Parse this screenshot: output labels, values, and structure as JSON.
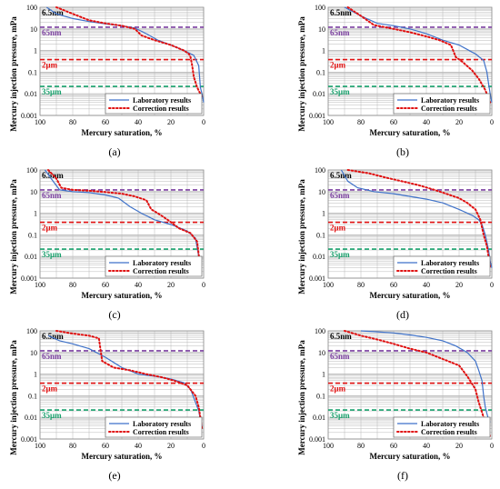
{
  "colors": {
    "laboratory": "#3f72c9",
    "correction": "#e01010",
    "line_65nm": "#7b3fa0",
    "line_2um": "#e01010",
    "line_35um": "#17a06b",
    "grid": "#b8b8b8"
  },
  "chart_data": [
    {
      "panel_label": "(a)",
      "type": "line",
      "xlabel": "Mercury saturation, %",
      "ylabel": "Mercury injection pressure, mPa",
      "x_ticks": [
        "100",
        "80",
        "60",
        "40",
        "20",
        "0"
      ],
      "y_ticks": [
        "100",
        "10",
        "1",
        "0.1",
        "0.01",
        "0.001"
      ],
      "xlim": [
        100,
        0
      ],
      "ylim": [
        0.001,
        100
      ],
      "y_scale": "log",
      "grid": true,
      "legend_position": "bottom-right",
      "reference_lines": [
        {
          "label": "6.5nm",
          "value": 100,
          "color": "#7b3fa0"
        },
        {
          "label": "65nm",
          "value": 12,
          "color": "#7b3fa0"
        },
        {
          "label": "2μm",
          "value": 0.38,
          "color": "#e01010"
        },
        {
          "label": "35μm",
          "value": 0.022,
          "color": "#17a06b"
        }
      ],
      "series": [
        {
          "name": "Laboratory results",
          "style": "solid",
          "x": [
            96,
            90,
            80,
            70,
            60,
            50,
            42,
            35,
            28,
            20,
            12,
            6,
            3,
            2,
            1,
            0
          ],
          "y": [
            100,
            50,
            30,
            22,
            17,
            14,
            11,
            6,
            3,
            1.8,
            1,
            0.6,
            0.2,
            0.02,
            0.01,
            0.004
          ]
        },
        {
          "name": "Correction results",
          "style": "dotted",
          "x": [
            90,
            80,
            70,
            60,
            50,
            42,
            38,
            30,
            20,
            12,
            9,
            8,
            7,
            6,
            4,
            1
          ],
          "y": [
            100,
            50,
            25,
            18,
            14,
            10,
            5,
            3,
            1.8,
            1,
            0.7,
            0.5,
            0.2,
            0.06,
            0.02,
            0.007
          ]
        }
      ]
    },
    {
      "panel_label": "(b)",
      "type": "line",
      "xlabel": "Mercury saturation, %",
      "ylabel": "Mercury injection pressure, mPa",
      "x_ticks": [
        "100",
        "80",
        "60",
        "40",
        "20",
        "0"
      ],
      "y_ticks": [
        "100",
        "10",
        "1",
        "0.1",
        "0.01",
        "0.001"
      ],
      "xlim": [
        100,
        0
      ],
      "ylim": [
        0.001,
        100
      ],
      "y_scale": "log",
      "grid": true,
      "legend_position": "bottom-right",
      "reference_lines": [
        {
          "label": "6.5nm",
          "value": 100,
          "color": "#7b3fa0"
        },
        {
          "label": "65nm",
          "value": 12,
          "color": "#7b3fa0"
        },
        {
          "label": "2μm",
          "value": 0.38,
          "color": "#e01010"
        },
        {
          "label": "35μm",
          "value": 0.022,
          "color": "#17a06b"
        }
      ],
      "series": [
        {
          "name": "Laboratory results",
          "style": "solid",
          "x": [
            90,
            80,
            70,
            60,
            50,
            40,
            30,
            20,
            10,
            5,
            3,
            2,
            1,
            0
          ],
          "y": [
            100,
            40,
            18,
            14,
            10,
            6,
            3,
            1.8,
            0.7,
            0.35,
            0.1,
            0.03,
            0.01,
            0.004
          ]
        },
        {
          "name": "Correction results",
          "style": "dotted",
          "x": [
            88,
            80,
            72,
            60,
            50,
            40,
            32,
            25,
            22,
            18,
            12,
            8,
            4,
            1
          ],
          "y": [
            100,
            40,
            15,
            10,
            7,
            4.5,
            3,
            1.8,
            0.5,
            0.3,
            0.12,
            0.05,
            0.015,
            0.004
          ]
        }
      ]
    },
    {
      "panel_label": "(c)",
      "type": "line",
      "xlabel": "Mercury saturation, %",
      "ylabel": "Mercury injection pressure, mPa",
      "x_ticks": [
        "100",
        "80",
        "60",
        "40",
        "20",
        "0"
      ],
      "y_ticks": [
        "100",
        "10",
        "1",
        "0.1",
        "0.01",
        "0.001"
      ],
      "xlim": [
        100,
        0
      ],
      "ylim": [
        0.001,
        100
      ],
      "y_scale": "log",
      "grid": true,
      "legend_position": "bottom-right",
      "reference_lines": [
        {
          "label": "6.5nm",
          "value": 100,
          "color": "#7b3fa0"
        },
        {
          "label": "65nm",
          "value": 12,
          "color": "#7b3fa0"
        },
        {
          "label": "2μm",
          "value": 0.38,
          "color": "#e01010"
        },
        {
          "label": "35μm",
          "value": 0.022,
          "color": "#17a06b"
        }
      ],
      "series": [
        {
          "name": "Laboratory results",
          "style": "solid",
          "x": [
            97,
            92,
            88,
            80,
            70,
            60,
            52,
            45,
            38,
            30,
            20,
            10,
            5,
            3,
            2
          ],
          "y": [
            100,
            30,
            12,
            10,
            9,
            7,
            5,
            2,
            1,
            0.5,
            0.3,
            0.15,
            0.07,
            0.01,
            0.004
          ]
        },
        {
          "name": "Correction results",
          "style": "dotted",
          "x": [
            95,
            90,
            87,
            80,
            70,
            60,
            50,
            42,
            35,
            32,
            28,
            22,
            15,
            8,
            4,
            2
          ],
          "y": [
            100,
            40,
            15,
            12,
            11,
            9.5,
            8,
            6,
            4,
            1.5,
            1,
            0.5,
            0.2,
            0.12,
            0.05,
            0.003
          ]
        }
      ]
    },
    {
      "panel_label": "(d)",
      "type": "line",
      "xlabel": "Mercury saturation, %",
      "ylabel": "Mercury injection pressure, mPa",
      "x_ticks": [
        "100",
        "80",
        "60",
        "40",
        "20",
        "0"
      ],
      "y_ticks": [
        "100",
        "10",
        "1",
        "0.1",
        "0.01",
        "0.001"
      ],
      "xlim": [
        100,
        0
      ],
      "ylim": [
        0.001,
        100
      ],
      "y_scale": "log",
      "grid": true,
      "legend_position": "bottom-right",
      "reference_lines": [
        {
          "label": "6.5nm",
          "value": 100,
          "color": "#7b3fa0"
        },
        {
          "label": "65nm",
          "value": 12,
          "color": "#7b3fa0"
        },
        {
          "label": "2μm",
          "value": 0.38,
          "color": "#e01010"
        },
        {
          "label": "35μm",
          "value": 0.022,
          "color": "#17a06b"
        }
      ],
      "series": [
        {
          "name": "Laboratory results",
          "style": "solid",
          "x": [
            92,
            88,
            82,
            72,
            60,
            50,
            40,
            30,
            20,
            12,
            8,
            6,
            4,
            2,
            1,
            0
          ],
          "y": [
            100,
            30,
            15,
            10,
            8,
            6,
            4.5,
            3,
            1.5,
            0.8,
            0.5,
            0.3,
            0.1,
            0.02,
            0.006,
            0.003
          ]
        },
        {
          "name": "Correction results",
          "style": "dotted",
          "x": [
            88,
            75,
            65,
            55,
            45,
            35,
            28,
            20,
            15,
            10,
            7,
            5,
            3,
            2,
            1
          ],
          "y": [
            100,
            70,
            45,
            30,
            20,
            12,
            8,
            5,
            3,
            1.5,
            0.5,
            0.1,
            0.03,
            0.01,
            0.003
          ]
        }
      ]
    },
    {
      "panel_label": "(e)",
      "type": "line",
      "xlabel": "Mercury saturation, %",
      "ylabel": "Mercury injection pressure, mPa",
      "x_ticks": [
        "100",
        "80",
        "60",
        "40",
        "20",
        "0"
      ],
      "y_ticks": [
        "100",
        "10",
        "1",
        "0.1",
        "0.01",
        "0.001"
      ],
      "xlim": [
        100,
        0
      ],
      "ylim": [
        0.001,
        100
      ],
      "y_scale": "log",
      "grid": true,
      "legend_position": "bottom-right",
      "reference_lines": [
        {
          "label": "6.5nm",
          "value": 100,
          "color": "#7b3fa0"
        },
        {
          "label": "65nm",
          "value": 12,
          "color": "#7b3fa0"
        },
        {
          "label": "2μm",
          "value": 0.38,
          "color": "#e01010"
        },
        {
          "label": "35μm",
          "value": 0.022,
          "color": "#17a06b"
        }
      ],
      "series": [
        {
          "name": "Laboratory results",
          "style": "solid",
          "x": [
            95,
            88,
            80,
            70,
            60,
            50,
            40,
            30,
            20,
            12,
            8,
            5,
            3,
            2,
            1
          ],
          "y": [
            60,
            35,
            25,
            15,
            6,
            2,
            1,
            0.8,
            0.6,
            0.4,
            0.2,
            0.05,
            0.02,
            0.008,
            0.004
          ]
        },
        {
          "name": "Correction results",
          "style": "dotted",
          "x": [
            90,
            80,
            70,
            64,
            62,
            55,
            45,
            35,
            25,
            18,
            10,
            5,
            3,
            2,
            1
          ],
          "y": [
            100,
            75,
            60,
            45,
            4,
            2,
            1.5,
            1,
            0.7,
            0.5,
            0.3,
            0.1,
            0.03,
            0.01,
            0.003
          ]
        }
      ]
    },
    {
      "panel_label": "(f)",
      "type": "line",
      "xlabel": "Mercury saturation, %",
      "ylabel": "Mercury injection pressure, mPa",
      "x_ticks": [
        "100",
        "80",
        "60",
        "40",
        "20",
        "0"
      ],
      "y_ticks": [
        "100",
        "10",
        "1",
        "0.1",
        "0.01",
        "0.001"
      ],
      "xlim": [
        100,
        0
      ],
      "ylim": [
        0.001,
        100
      ],
      "y_scale": "log",
      "grid": true,
      "legend_position": "bottom-right",
      "reference_lines": [
        {
          "label": "6.5nm",
          "value": 100,
          "color": "#7b3fa0"
        },
        {
          "label": "65nm",
          "value": 12,
          "color": "#7b3fa0"
        },
        {
          "label": "2μm",
          "value": 0.38,
          "color": "#e01010"
        },
        {
          "label": "35μm",
          "value": 0.022,
          "color": "#17a06b"
        }
      ],
      "series": [
        {
          "name": "Laboratory results",
          "style": "solid",
          "x": [
            80,
            70,
            60,
            50,
            40,
            30,
            22,
            15,
            10,
            8,
            6,
            5,
            4,
            3,
            2,
            1
          ],
          "y": [
            100,
            90,
            80,
            65,
            50,
            35,
            20,
            10,
            4,
            1.5,
            0.5,
            0.1,
            0.03,
            0.015,
            0.008,
            0.006
          ]
        },
        {
          "name": "Correction results",
          "style": "dotted",
          "x": [
            90,
            80,
            70,
            60,
            50,
            40,
            30,
            20,
            15,
            10,
            8,
            5,
            3,
            1
          ],
          "y": [
            100,
            60,
            40,
            25,
            15,
            10,
            5,
            2.5,
            0.8,
            0.2,
            0.05,
            0.01,
            0.004,
            0.0012
          ]
        }
      ]
    }
  ]
}
